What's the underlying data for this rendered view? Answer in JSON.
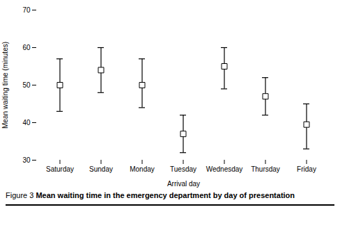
{
  "chart_data": {
    "type": "errorbar",
    "categories": [
      "Saturday",
      "Sunday",
      "Monday",
      "Tuesday",
      "Wednesday",
      "Thursday",
      "Friday"
    ],
    "values": [
      50,
      54,
      50,
      37,
      55,
      47,
      39.5
    ],
    "ci_lower": [
      43,
      48,
      44,
      32,
      49,
      42,
      33
    ],
    "ci_upper": [
      57,
      60,
      57,
      42,
      60,
      52,
      45
    ],
    "xlabel": "Arrival day",
    "ylabel": "Mean waiting time (minutes)",
    "ylim": [
      30,
      70
    ],
    "yticks": [
      30,
      40,
      50,
      60,
      70
    ],
    "caption_prefix": "Figure 3",
    "caption": "Mean waiting time in the emergency department by day of presentation",
    "color": "black",
    "marker": "square",
    "grid": false
  }
}
